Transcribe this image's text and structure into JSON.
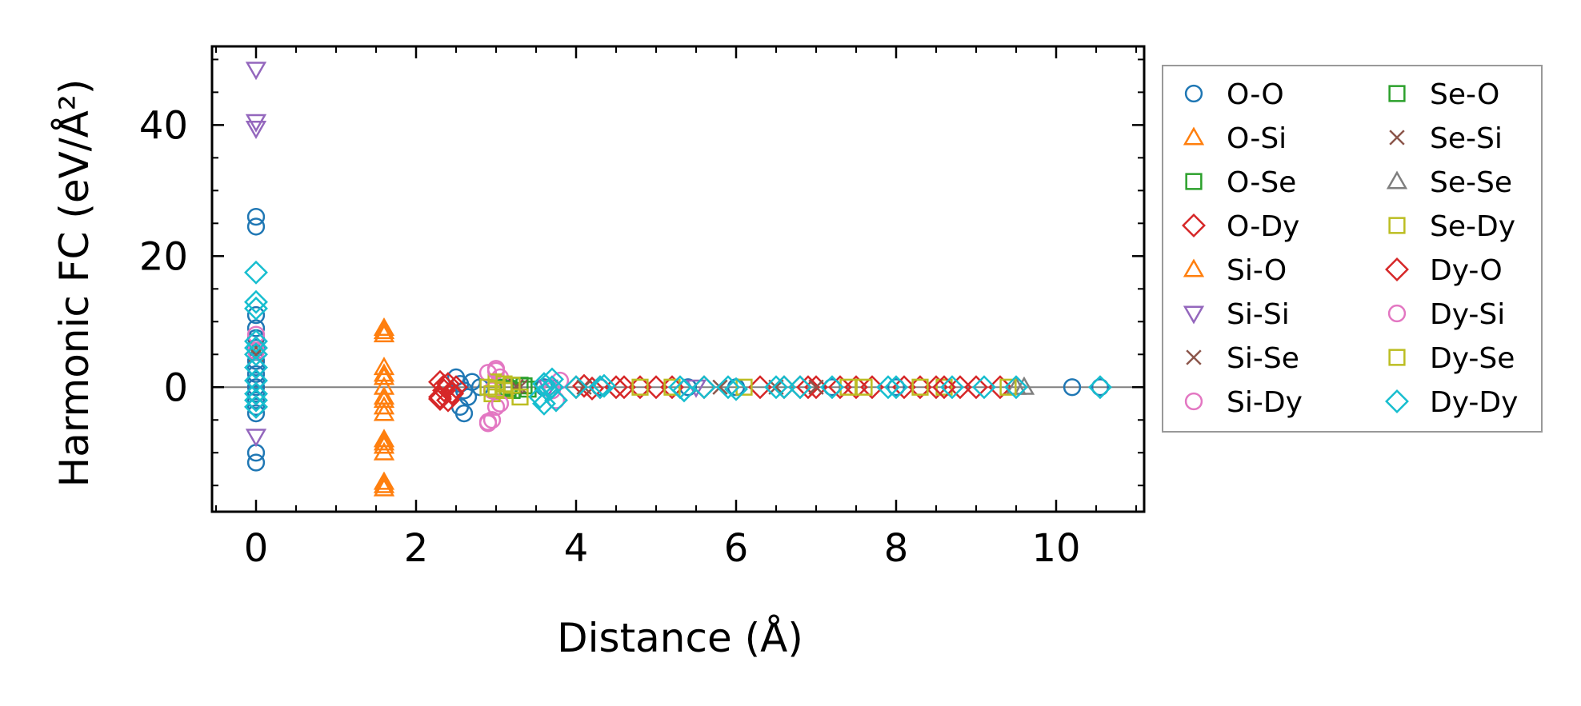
{
  "chart_data": {
    "type": "scatter",
    "xlabel": "Distance (Å)",
    "ylabel": "Harmonic FC (eV/Å²)",
    "xlim": [
      -0.55,
      11.1
    ],
    "ylim": [
      -19,
      52
    ],
    "x_ticks": [
      0,
      2,
      4,
      6,
      8,
      10
    ],
    "y_ticks": [
      0,
      20,
      40
    ],
    "zero_line": true,
    "legend_position": "outside-right",
    "legend_columns": 2,
    "series": [
      {
        "name": "O-O",
        "marker": "circle",
        "color": "#1f77b4",
        "points": [
          [
            0,
            26
          ],
          [
            0,
            24.5
          ],
          [
            0,
            11
          ],
          [
            0,
            9
          ],
          [
            0,
            7.5
          ],
          [
            0,
            6
          ],
          [
            0,
            4
          ],
          [
            0,
            3
          ],
          [
            0,
            2
          ],
          [
            0,
            1
          ],
          [
            0,
            0
          ],
          [
            0,
            -1
          ],
          [
            0,
            -2
          ],
          [
            0,
            -3
          ],
          [
            0,
            -4
          ],
          [
            0,
            -10
          ],
          [
            0,
            -11.5
          ],
          [
            2.5,
            1.5
          ],
          [
            2.55,
            0.5
          ],
          [
            2.6,
            -0.5
          ],
          [
            2.65,
            -1.5
          ],
          [
            2.55,
            -3
          ],
          [
            2.6,
            -4
          ],
          [
            2.7,
            0.8
          ],
          [
            2.8,
            0
          ],
          [
            3.6,
            0
          ],
          [
            4.3,
            0
          ],
          [
            5.4,
            0
          ],
          [
            6.0,
            0
          ],
          [
            7.2,
            0
          ],
          [
            8.0,
            0
          ],
          [
            10.2,
            0
          ],
          [
            10.55,
            0
          ]
        ]
      },
      {
        "name": "O-Si",
        "marker": "triangle-up",
        "color": "#ff7f0e",
        "points": [
          [
            1.6,
            9
          ],
          [
            1.6,
            8
          ],
          [
            1.6,
            3
          ],
          [
            1.6,
            1.5
          ],
          [
            1.6,
            0
          ],
          [
            1.6,
            -1.5
          ],
          [
            1.6,
            -3
          ],
          [
            1.6,
            -4
          ],
          [
            1.6,
            -8
          ],
          [
            1.6,
            -9
          ],
          [
            1.6,
            -10
          ],
          [
            1.6,
            -14.5
          ],
          [
            1.6,
            -15.5
          ]
        ]
      },
      {
        "name": "O-Se",
        "marker": "square",
        "color": "#2ca02c",
        "points": [
          [
            3.1,
            0
          ],
          [
            3.2,
            -0.5
          ],
          [
            3.3,
            0.3
          ],
          [
            3.4,
            -0.3
          ]
        ]
      },
      {
        "name": "O-Dy",
        "marker": "diamond",
        "color": "#d62728",
        "points": [
          [
            2.3,
            -1.5
          ],
          [
            2.35,
            -0.5
          ],
          [
            2.4,
            0.5
          ],
          [
            2.45,
            -1
          ],
          [
            2.5,
            0
          ],
          [
            2.4,
            -2
          ],
          [
            2.3,
            0.8
          ],
          [
            4.0,
            0
          ],
          [
            4.1,
            0.2
          ],
          [
            4.2,
            -0.2
          ],
          [
            4.5,
            0
          ],
          [
            4.6,
            0
          ],
          [
            4.8,
            0
          ],
          [
            5.0,
            0
          ],
          [
            5.2,
            0
          ],
          [
            5.6,
            0
          ],
          [
            6.3,
            0
          ],
          [
            6.6,
            0
          ],
          [
            6.9,
            0
          ],
          [
            7.0,
            0
          ],
          [
            7.3,
            0
          ],
          [
            7.5,
            0
          ],
          [
            7.7,
            0
          ],
          [
            8.1,
            0
          ],
          [
            8.3,
            0
          ],
          [
            8.5,
            0
          ],
          [
            8.8,
            0
          ],
          [
            9.0,
            0
          ],
          [
            9.3,
            0
          ]
        ]
      },
      {
        "name": "Si-O",
        "marker": "triangle-up",
        "color": "#ff7f0e",
        "points": [
          [
            1.6,
            8.5
          ],
          [
            1.6,
            2
          ],
          [
            1.6,
            -2
          ],
          [
            1.6,
            -8.5
          ],
          [
            1.6,
            -15
          ]
        ]
      },
      {
        "name": "Si-Si",
        "marker": "triangle-down",
        "color": "#9467bd",
        "points": [
          [
            0,
            48.5
          ],
          [
            0,
            40.5
          ],
          [
            0,
            39.5
          ],
          [
            0,
            -7.5
          ],
          [
            3.65,
            0
          ],
          [
            5.5,
            0
          ]
        ]
      },
      {
        "name": "Si-Se",
        "marker": "x",
        "color": "#8c564b",
        "points": [
          [
            0,
            6
          ],
          [
            0,
            5
          ],
          [
            3.3,
            0
          ],
          [
            4.1,
            0
          ],
          [
            5.8,
            0
          ],
          [
            7.0,
            0
          ]
        ]
      },
      {
        "name": "Si-Dy",
        "marker": "circle",
        "color": "#e377c2",
        "points": [
          [
            0,
            8
          ],
          [
            0,
            5.5
          ],
          [
            3.0,
            2.8
          ],
          [
            2.9,
            2.2
          ],
          [
            3.05,
            1.5
          ],
          [
            2.95,
            -0.5
          ],
          [
            3.0,
            -3
          ],
          [
            2.95,
            -5
          ],
          [
            2.9,
            -5.5
          ],
          [
            3.7,
            -0.5
          ],
          [
            3.8,
            1
          ],
          [
            3.75,
            -2
          ]
        ]
      },
      {
        "name": "Se-O",
        "marker": "square",
        "color": "#2ca02c",
        "points": [
          [
            3.15,
            -0.2
          ],
          [
            3.35,
            0.2
          ]
        ]
      },
      {
        "name": "Se-Si",
        "marker": "x",
        "color": "#8c564b",
        "points": [
          [
            3.25,
            0.1
          ],
          [
            6.5,
            0
          ]
        ]
      },
      {
        "name": "Se-Se",
        "marker": "triangle-up",
        "color": "#7f7f7f",
        "points": [
          [
            9.5,
            0
          ],
          [
            9.6,
            0
          ]
        ]
      },
      {
        "name": "Se-Dy",
        "marker": "square",
        "color": "#bcbd22",
        "points": [
          [
            2.9,
            0
          ],
          [
            2.95,
            -1
          ],
          [
            3.0,
            0.8
          ],
          [
            3.1,
            -0.5
          ],
          [
            3.2,
            0.3
          ],
          [
            3.3,
            -1.5
          ],
          [
            4.8,
            0
          ],
          [
            5.2,
            0
          ],
          [
            6.1,
            0
          ],
          [
            7.4,
            0
          ],
          [
            7.6,
            0
          ],
          [
            8.3,
            0
          ],
          [
            8.6,
            0
          ],
          [
            9.4,
            0
          ]
        ]
      },
      {
        "name": "Dy-O",
        "marker": "diamond",
        "color": "#d62728",
        "points": [
          [
            2.3,
            -1.8
          ],
          [
            2.35,
            0.2
          ],
          [
            2.45,
            -0.8
          ],
          [
            4.3,
            0
          ],
          [
            6.8,
            0
          ],
          [
            8.6,
            0
          ]
        ]
      },
      {
        "name": "Dy-Si",
        "marker": "circle",
        "color": "#e377c2",
        "points": [
          [
            3.0,
            2.5
          ],
          [
            2.9,
            -5.3
          ],
          [
            3.05,
            -2.5
          ]
        ]
      },
      {
        "name": "Dy-Se",
        "marker": "square",
        "color": "#bcbd22",
        "points": [
          [
            3.0,
            -0.3
          ],
          [
            3.1,
            0.5
          ]
        ]
      },
      {
        "name": "Dy-Dy",
        "marker": "diamond",
        "color": "#17becf",
        "points": [
          [
            0,
            17.5
          ],
          [
            0,
            13
          ],
          [
            0,
            12
          ],
          [
            0,
            7
          ],
          [
            0,
            6
          ],
          [
            0,
            5
          ],
          [
            0,
            3
          ],
          [
            0,
            1
          ],
          [
            0,
            -1
          ],
          [
            0,
            -2
          ],
          [
            0,
            -3
          ],
          [
            3.55,
            -1.5
          ],
          [
            3.6,
            0.5
          ],
          [
            3.65,
            -0.5
          ],
          [
            3.7,
            1.2
          ],
          [
            3.75,
            -2
          ],
          [
            3.6,
            -2.5
          ],
          [
            3.7,
            0
          ],
          [
            4.0,
            0
          ],
          [
            4.3,
            0
          ],
          [
            4.35,
            0.2
          ],
          [
            5.3,
            0
          ],
          [
            5.35,
            -0.5
          ],
          [
            5.6,
            0
          ],
          [
            5.9,
            0
          ],
          [
            6.0,
            -0.3
          ],
          [
            6.5,
            0
          ],
          [
            6.6,
            0
          ],
          [
            6.8,
            0
          ],
          [
            7.2,
            0
          ],
          [
            7.9,
            0
          ],
          [
            8.0,
            0
          ],
          [
            8.7,
            0
          ],
          [
            9.1,
            0
          ],
          [
            9.5,
            0
          ],
          [
            10.55,
            0
          ]
        ]
      }
    ]
  }
}
